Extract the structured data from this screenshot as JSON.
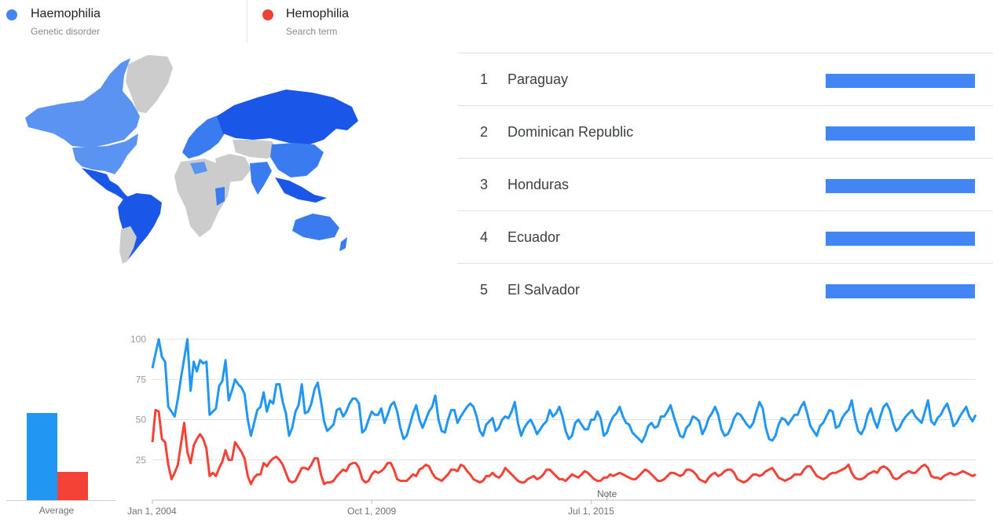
{
  "terms": [
    {
      "name": "Haemophilia",
      "subtitle": "Genetic disorder",
      "color": "#4285f4"
    },
    {
      "name": "Hemophilia",
      "subtitle": "Search term",
      "color": "#ea4335"
    }
  ],
  "map": {
    "colors": {
      "high": "#1a56e8",
      "mid": "#3b7bf0",
      "low": "#5b93f2",
      "none": "#cccccc"
    }
  },
  "regions": [
    {
      "rank": "1",
      "name": "Paraguay",
      "value": 100
    },
    {
      "rank": "2",
      "name": "Dominican Republic",
      "value": 100
    },
    {
      "rank": "3",
      "name": "Honduras",
      "value": 100
    },
    {
      "rank": "4",
      "name": "Ecuador",
      "value": 100
    },
    {
      "rank": "5",
      "name": "El Salvador",
      "value": 100
    }
  ],
  "average": {
    "label": "Average",
    "values": [
      53,
      17
    ]
  },
  "chart_data": {
    "type": "line",
    "x_start": "Jan 1, 2004",
    "x_step": "month",
    "x_tick_labels": [
      "Jan 1, 2004",
      "Oct 1, 2009",
      "Jul 1, 2015"
    ],
    "y_ticks": [
      "100",
      "75",
      "50",
      "25"
    ],
    "ylim": [
      0,
      100
    ],
    "grid": true,
    "annotation": "Note",
    "series": [
      {
        "name": "Haemophilia",
        "color": "#2196f3",
        "values": [
          82,
          91,
          100,
          89,
          86,
          58,
          55,
          52,
          63,
          76,
          88,
          100,
          68,
          86,
          80,
          87,
          85,
          86,
          53,
          55,
          57,
          71,
          74,
          87,
          62,
          68,
          75,
          72,
          70,
          66,
          50,
          40,
          48,
          56,
          58,
          67,
          55,
          62,
          60,
          72,
          72,
          61,
          54,
          40,
          45,
          55,
          59,
          72,
          54,
          55,
          60,
          69,
          73,
          62,
          49,
          43,
          45,
          47,
          56,
          57,
          52,
          55,
          60,
          63,
          63,
          60,
          42,
          44,
          50,
          55,
          53,
          53,
          57,
          48,
          53,
          59,
          61,
          55,
          45,
          38,
          40,
          47,
          54,
          59,
          50,
          45,
          50,
          55,
          58,
          65,
          50,
          43,
          42,
          50,
          56,
          56,
          48,
          52,
          55,
          58,
          60,
          58,
          52,
          43,
          40,
          47,
          49,
          51,
          43,
          45,
          50,
          52,
          51,
          55,
          61,
          48,
          40,
          45,
          48,
          50,
          46,
          41,
          44,
          47,
          49,
          56,
          52,
          54,
          58,
          52,
          43,
          38,
          40,
          48,
          50,
          47,
          44,
          44,
          50,
          50,
          55,
          51,
          40,
          42,
          48,
          52,
          54,
          58,
          52,
          48,
          47,
          42,
          40,
          38,
          36,
          40,
          46,
          48,
          45,
          46,
          52,
          52,
          55,
          59,
          52,
          46,
          40,
          39,
          45,
          47,
          52,
          51,
          49,
          41,
          45,
          51,
          54,
          58,
          53,
          44,
          40,
          41,
          45,
          51,
          54,
          53,
          50,
          47,
          45,
          48,
          55,
          61,
          57,
          45,
          38,
          37,
          40,
          47,
          51,
          50,
          47,
          50,
          53,
          53,
          58,
          61,
          54,
          46,
          43,
          40,
          46,
          48,
          52,
          56,
          55,
          45,
          46,
          51,
          54,
          56,
          62,
          51,
          43,
          41,
          45,
          53,
          57,
          50,
          45,
          52,
          58,
          60,
          56,
          48,
          43,
          45,
          49,
          52,
          54,
          56,
          52,
          50,
          48,
          55,
          62,
          49,
          47,
          51,
          53,
          57,
          60,
          54,
          46,
          48,
          52,
          55,
          58,
          52,
          49,
          53
        ]
      },
      {
        "name": "Hemophilia",
        "color": "#f44336",
        "values": [
          36,
          56,
          55,
          38,
          36,
          22,
          13,
          17,
          22,
          35,
          48,
          30,
          23,
          34,
          38,
          41,
          38,
          32,
          15,
          17,
          15,
          20,
          24,
          31,
          25,
          25,
          36,
          33,
          30,
          26,
          15,
          10,
          14,
          16,
          16,
          23,
          21,
          24,
          26,
          27,
          25,
          22,
          17,
          12,
          11,
          12,
          16,
          20,
          20,
          19,
          22,
          26,
          26,
          16,
          10,
          11,
          11,
          12,
          15,
          17,
          19,
          18,
          22,
          23,
          23,
          20,
          13,
          11,
          12,
          16,
          18,
          17,
          18,
          20,
          23,
          23,
          19,
          13,
          12,
          12,
          12,
          14,
          16,
          15,
          19,
          20,
          22,
          21,
          17,
          14,
          13,
          12,
          14,
          16,
          19,
          19,
          18,
          22,
          21,
          18,
          16,
          13,
          12,
          11,
          12,
          15,
          15,
          17,
          15,
          14,
          16,
          20,
          18,
          16,
          14,
          12,
          11,
          11,
          13,
          14,
          15,
          13,
          14,
          16,
          19,
          19,
          17,
          15,
          13,
          13,
          12,
          14,
          16,
          15,
          14,
          16,
          18,
          17,
          15,
          13,
          12,
          12,
          14,
          14,
          16,
          15,
          16,
          17,
          16,
          15,
          14,
          13,
          13,
          15,
          17,
          19,
          18,
          16,
          14,
          12,
          12,
          13,
          15,
          17,
          17,
          16,
          15,
          16,
          19,
          19,
          18,
          16,
          13,
          12,
          11,
          14,
          16,
          17,
          15,
          16,
          18,
          19,
          19,
          17,
          13,
          12,
          11,
          12,
          14,
          16,
          16,
          15,
          16,
          18,
          19,
          20,
          17,
          14,
          13,
          12,
          13,
          14,
          16,
          16,
          16,
          19,
          21,
          21,
          18,
          15,
          14,
          13,
          14,
          16,
          17,
          17,
          18,
          19,
          20,
          22,
          17,
          14,
          13,
          13,
          14,
          16,
          17,
          18,
          17,
          20,
          21,
          20,
          18,
          14,
          13,
          14,
          16,
          17,
          18,
          17,
          17,
          19,
          21,
          22,
          20,
          15,
          14,
          14,
          13,
          15,
          16,
          17,
          16,
          16,
          17,
          18,
          17,
          16,
          15,
          16
        ]
      }
    ]
  }
}
